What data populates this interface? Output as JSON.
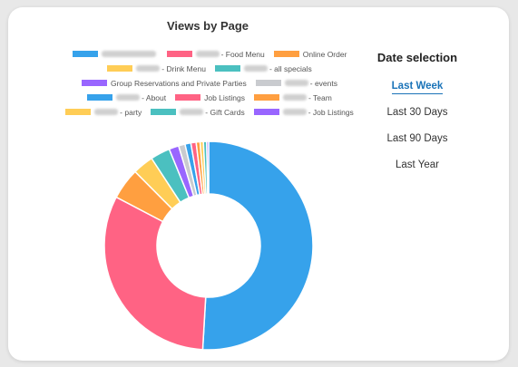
{
  "chart_data": {
    "type": "pie",
    "title": "Views by Page",
    "legend_position": "top",
    "series": [
      {
        "name": "",
        "value": 50.3,
        "color": "#36a2eb",
        "redacted_prefix": 60
      },
      {
        "name": " - Food Menu",
        "value": 31.4,
        "color": "#ff6384",
        "redacted_prefix": 26
      },
      {
        "name": "Online Order",
        "value": 4.8,
        "color": "#ff9f40",
        "redacted_prefix": 0
      },
      {
        "name": " - Drink Menu",
        "value": 3.2,
        "color": "#ffcd56",
        "redacted_prefix": 26
      },
      {
        "name": " - all specials",
        "value": 3.0,
        "color": "#4bc0c0",
        "redacted_prefix": 26
      },
      {
        "name": "Group Reservations and Private Parties",
        "value": 1.5,
        "color": "#9966ff",
        "redacted_prefix": 0
      },
      {
        "name": " - events",
        "value": 1.0,
        "color": "#c9cbcf",
        "redacted_prefix": 26
      },
      {
        "name": " - About",
        "value": 0.9,
        "color": "#36a2eb",
        "redacted_prefix": 26
      },
      {
        "name": "Job Listings",
        "value": 0.8,
        "color": "#ff6384",
        "redacted_prefix": 0
      },
      {
        "name": " - Team",
        "value": 0.6,
        "color": "#ff9f40",
        "redacted_prefix": 26
      },
      {
        "name": " - party",
        "value": 0.5,
        "color": "#ffcd56",
        "redacted_prefix": 26
      },
      {
        "name": " - Gift Cards",
        "value": 0.5,
        "color": "#4bc0c0",
        "redacted_prefix": 26
      },
      {
        "name": " - Job Listings",
        "value": 0.3,
        "color": "#9966ff",
        "redacted_prefix": 26
      }
    ]
  },
  "date_selection": {
    "heading": "Date selection",
    "options": [
      "Last Week",
      "Last 30 Days",
      "Last 90 Days",
      "Last Year"
    ],
    "selected": "Last Week",
    "accent_color": "#1a73b8"
  }
}
